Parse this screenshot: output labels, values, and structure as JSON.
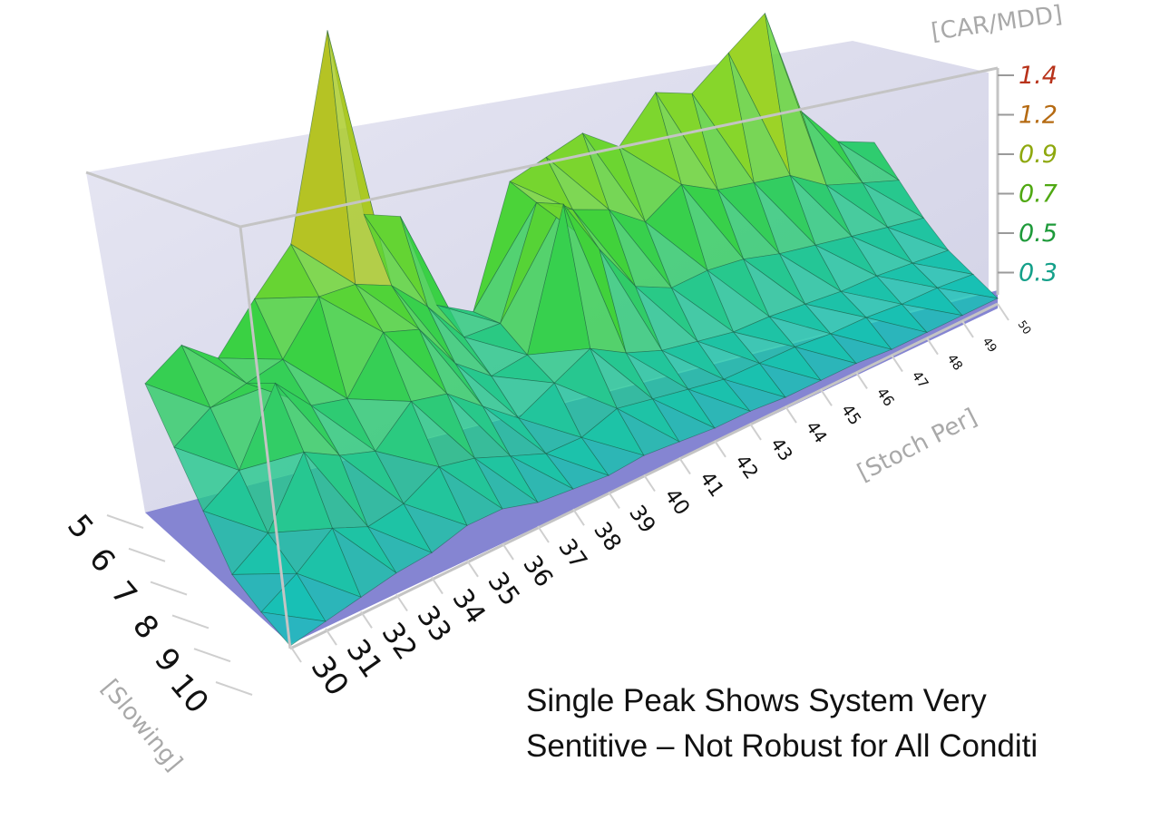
{
  "chart_data": {
    "type": "surface3d",
    "zlabel": "[CAR/MDD]",
    "xlabel": "[Stoch Per]",
    "ylabel": "[Slowing]",
    "x_ticks": [
      "30",
      "31",
      "32",
      "33",
      "34",
      "35",
      "36",
      "37",
      "38",
      "39",
      "40",
      "41",
      "42",
      "43",
      "44",
      "45",
      "46",
      "47",
      "48",
      "49",
      "50"
    ],
    "y_ticks": [
      "5",
      "6",
      "7",
      "8",
      "9",
      "10"
    ],
    "z_ticks": [
      {
        "label": "1.4",
        "color": "#b8321a"
      },
      {
        "label": "1.2",
        "color": "#b56a12"
      },
      {
        "label": "0.9",
        "color": "#8ea80e"
      },
      {
        "label": "0.7",
        "color": "#4fa812"
      },
      {
        "label": "0.5",
        "color": "#1e9a3a"
      },
      {
        "label": "0.3",
        "color": "#14a08a"
      }
    ],
    "zlim": [
      0.2,
      1.4
    ],
    "slowing": [
      5,
      6,
      7,
      8,
      9,
      10
    ],
    "stoch_per": [
      30,
      31,
      32,
      33,
      34,
      35,
      36,
      37,
      38,
      39,
      40,
      41,
      42,
      43,
      44,
      45,
      46,
      47,
      48,
      49,
      50
    ],
    "z": [
      [
        0.55,
        0.62,
        0.55,
        0.68,
        0.8,
        1.38,
        0.82,
        0.78,
        0.48,
        0.42,
        0.78,
        0.82,
        0.86,
        0.78,
        0.92,
        0.88,
        0.98,
        1.08,
        0.7,
        0.55,
        0.5
      ],
      [
        0.45,
        0.52,
        0.55,
        0.58,
        0.72,
        0.72,
        0.68,
        0.58,
        0.45,
        0.45,
        0.78,
        0.72,
        0.68,
        0.6,
        0.68,
        0.62,
        0.6,
        0.58,
        0.5,
        0.46,
        0.42
      ],
      [
        0.35,
        0.42,
        0.62,
        0.52,
        0.5,
        0.65,
        0.62,
        0.48,
        0.4,
        0.42,
        0.84,
        0.66,
        0.5,
        0.45,
        0.46,
        0.45,
        0.42,
        0.4,
        0.38,
        0.36,
        0.34
      ],
      [
        0.25,
        0.32,
        0.5,
        0.45,
        0.42,
        0.52,
        0.5,
        0.42,
        0.34,
        0.4,
        0.46,
        0.4,
        0.36,
        0.34,
        0.32,
        0.32,
        0.31,
        0.3,
        0.3,
        0.29,
        0.28
      ],
      [
        0.22,
        0.28,
        0.36,
        0.32,
        0.34,
        0.4,
        0.38,
        0.34,
        0.3,
        0.3,
        0.34,
        0.32,
        0.3,
        0.28,
        0.28,
        0.28,
        0.27,
        0.27,
        0.26,
        0.26,
        0.25
      ],
      [
        0.2,
        0.22,
        0.24,
        0.26,
        0.27,
        0.3,
        0.3,
        0.27,
        0.26,
        0.25,
        0.26,
        0.25,
        0.24,
        0.24,
        0.23,
        0.23,
        0.23,
        0.22,
        0.22,
        0.22,
        0.22
      ]
    ]
  },
  "caption": {
    "line1": "Single Peak Shows System Very",
    "line2": "Sentitive – Not Robust for All Conditi"
  }
}
